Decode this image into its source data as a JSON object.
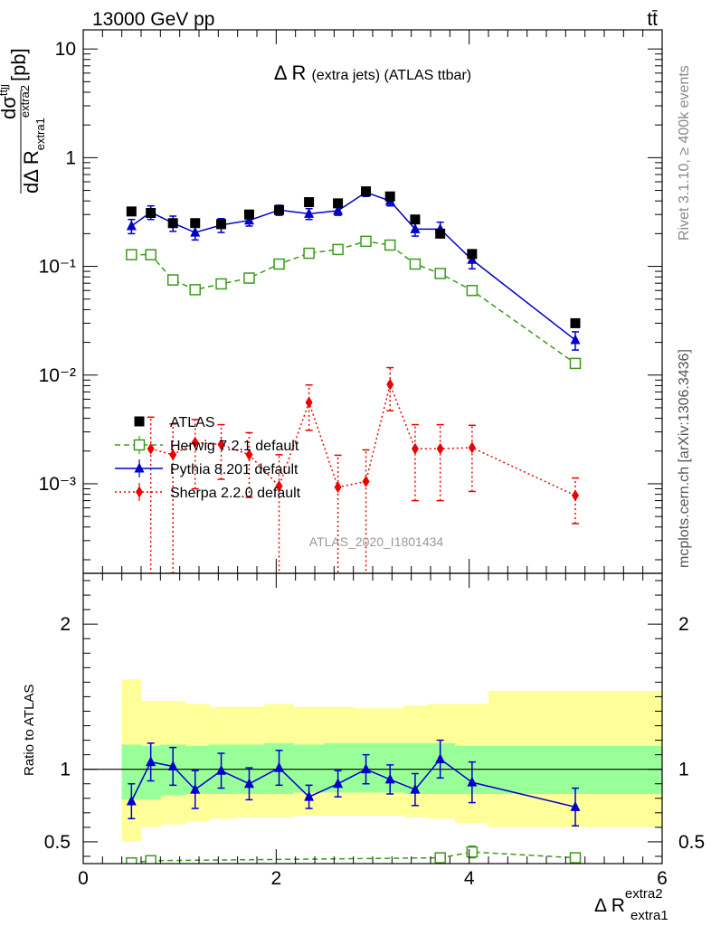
{
  "header": {
    "energy_label": "13000 GeV pp",
    "process_label": "tt̄"
  },
  "side_labels": {
    "rivet": "Rivet 3.1.10, ≥ 400k events",
    "mcplots": "mcplots.cern.ch [arXiv:1306.3436]"
  },
  "chart_data": [
    {
      "type": "scatter",
      "title": "Δ R (extra jets) (ATLAS ttbar)",
      "watermark": "ATLAS_2020_I1801434",
      "ylabel": {
        "numer": "dσ",
        "numer_sup": "ttjj",
        "denom": "dΔ R",
        "denom_sub": "extra1",
        "denom_sup": "extra2",
        "unit": "[pb]"
      },
      "xlim": [
        0,
        6
      ],
      "ylim": [
        0.00015,
        15
      ],
      "yscale": "log",
      "ytick_labels": [
        "10⁻³",
        "10⁻²",
        "10⁻¹",
        "1",
        "10"
      ],
      "legend_position": "mid-left",
      "series": [
        {
          "name": "ATLAS",
          "color": "#000000",
          "marker": "square-filled",
          "line": "none",
          "x": [
            0.5,
            0.7,
            0.93,
            1.16,
            1.43,
            1.72,
            2.03,
            2.34,
            2.64,
            2.93,
            3.18,
            3.44,
            3.7,
            4.03,
            5.1
          ],
          "y": [
            0.32,
            0.31,
            0.25,
            0.25,
            0.245,
            0.3,
            0.33,
            0.39,
            0.38,
            0.49,
            0.44,
            0.27,
            0.2,
            0.13,
            0.03
          ],
          "err": [
            0.0,
            0.0,
            0.0,
            0.0,
            0.0,
            0.0,
            0.0,
            0.0,
            0.0,
            0.0,
            0.0,
            0.0,
            0.0,
            0.0,
            0.0
          ]
        },
        {
          "name": "Herwig 7.2.1 default",
          "color": "#3a9a1a",
          "marker": "square-open",
          "line": "dashed",
          "x": [
            0.5,
            0.7,
            0.93,
            1.16,
            1.43,
            1.72,
            2.03,
            2.34,
            2.64,
            2.93,
            3.18,
            3.44,
            3.7,
            4.03,
            5.1
          ],
          "y": [
            0.128,
            0.128,
            0.075,
            0.061,
            0.069,
            0.078,
            0.105,
            0.132,
            0.143,
            0.17,
            0.157,
            0.105,
            0.086,
            0.06,
            0.0128
          ],
          "err": [
            0.0,
            0.0,
            0.0,
            0.0,
            0.0,
            0.0,
            0.0,
            0.0,
            0.0,
            0.0,
            0.0,
            0.0,
            0.0,
            0.0,
            0.0
          ]
        },
        {
          "name": "Pythia 8.201 default",
          "color": "#0000cc",
          "marker": "triangle-filled",
          "line": "solid",
          "x": [
            0.5,
            0.7,
            0.93,
            1.16,
            1.43,
            1.72,
            2.03,
            2.34,
            2.64,
            2.93,
            3.18,
            3.44,
            3.7,
            4.03,
            5.1
          ],
          "y": [
            0.235,
            0.315,
            0.25,
            0.205,
            0.24,
            0.265,
            0.33,
            0.305,
            0.325,
            0.48,
            0.4,
            0.22,
            0.22,
            0.115,
            0.021
          ],
          "err": [
            0.035,
            0.045,
            0.04,
            0.03,
            0.035,
            0.03,
            0.035,
            0.035,
            0.03,
            0.04,
            0.04,
            0.03,
            0.035,
            0.02,
            0.004
          ]
        },
        {
          "name": "Sherpa 2.2.0 default",
          "color": "#ee0000",
          "marker": "diamond-filled",
          "line": "dotted",
          "x": [
            0.5,
            0.7,
            0.93,
            1.16,
            1.43,
            1.72,
            2.03,
            2.34,
            2.64,
            2.93,
            3.18,
            3.44,
            3.7,
            4.03,
            5.1
          ],
          "y": [
            0.0,
            0.0021,
            0.00185,
            0.0024,
            0.0023,
            0.00185,
            0.00095,
            0.0056,
            0.00093,
            0.00105,
            0.0082,
            0.0021,
            0.0021,
            0.00215,
            0.00078
          ],
          "err": [
            0.0,
            0.002,
            0.0017,
            0.0015,
            0.0012,
            0.0011,
            0.0009,
            0.0025,
            0.0009,
            0.001,
            0.0035,
            0.0014,
            0.0014,
            0.0013,
            0.00035
          ]
        }
      ]
    },
    {
      "type": "scatter",
      "xlabel": "Δ R",
      "xlabel_sub": "extra1",
      "xlabel_sup": "extra2",
      "ylabel": "Ratio to ATLAS",
      "xlim": [
        0,
        6
      ],
      "ylim": [
        0.35,
        2.35
      ],
      "ytick_labels": [
        "0.5",
        "1",
        "2"
      ],
      "xtick_labels": [
        "0",
        "2",
        "4",
        "6"
      ],
      "uncertainty_bins": [
        0.4,
        0.6,
        0.8,
        1.06,
        1.3,
        1.58,
        1.88,
        2.18,
        2.5,
        2.8,
        3.06,
        3.32,
        3.58,
        3.85,
        4.2,
        6.0
      ],
      "band_inner": [
        [
          0.79,
          1.17
        ],
        [
          0.79,
          1.16
        ],
        [
          0.82,
          1.17
        ],
        [
          0.83,
          1.16
        ],
        [
          0.83,
          1.17
        ],
        [
          0.83,
          1.17
        ],
        [
          0.83,
          1.18
        ],
        [
          0.84,
          1.17
        ],
        [
          0.84,
          1.18
        ],
        [
          0.84,
          1.18
        ],
        [
          0.84,
          1.18
        ],
        [
          0.83,
          1.18
        ],
        [
          0.83,
          1.18
        ],
        [
          0.83,
          1.16
        ],
        [
          0.83,
          1.16
        ]
      ],
      "band_outer": [
        [
          0.5,
          1.62
        ],
        [
          0.6,
          1.47
        ],
        [
          0.62,
          1.47
        ],
        [
          0.64,
          1.45
        ],
        [
          0.66,
          1.43
        ],
        [
          0.67,
          1.43
        ],
        [
          0.67,
          1.45
        ],
        [
          0.68,
          1.43
        ],
        [
          0.68,
          1.43
        ],
        [
          0.68,
          1.42
        ],
        [
          0.68,
          1.42
        ],
        [
          0.67,
          1.44
        ],
        [
          0.66,
          1.45
        ],
        [
          0.63,
          1.45
        ],
        [
          0.6,
          1.54
        ]
      ],
      "series": [
        {
          "name": "Herwig 7.2.1 default",
          "color": "#3a9a1a",
          "marker": "square-open",
          "line": "dashed",
          "x": [
            0.5,
            0.7,
            3.7,
            4.03,
            5.1
          ],
          "y": [
            0.355,
            0.37,
            0.39,
            0.43,
            0.39
          ],
          "err": [
            0.025,
            0.025,
            0.03,
            0.04,
            0.03
          ]
        },
        {
          "name": "Pythia 8.201 default",
          "color": "#0000cc",
          "marker": "triangle-filled",
          "line": "solid",
          "x": [
            0.5,
            0.7,
            0.93,
            1.16,
            1.43,
            1.72,
            2.03,
            2.34,
            2.64,
            2.93,
            3.18,
            3.44,
            3.7,
            4.03,
            5.1
          ],
          "y": [
            0.78,
            1.05,
            1.02,
            0.86,
            0.99,
            0.9,
            1.01,
            0.81,
            0.9,
            1.0,
            0.93,
            0.86,
            1.07,
            0.91,
            0.74
          ],
          "err": [
            0.12,
            0.13,
            0.13,
            0.13,
            0.12,
            0.11,
            0.12,
            0.08,
            0.09,
            0.1,
            0.1,
            0.11,
            0.13,
            0.14,
            0.13
          ]
        }
      ]
    }
  ]
}
